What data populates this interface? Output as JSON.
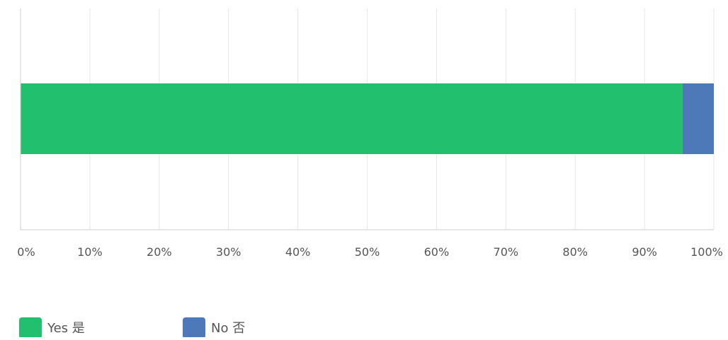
{
  "chart_data": {
    "type": "bar",
    "orientation": "horizontal",
    "stacked": true,
    "percent_stacked": true,
    "categories": [
      ""
    ],
    "series": [
      {
        "name": "Yes 是",
        "values": [
          95.5
        ],
        "color": "#22bf6f"
      },
      {
        "name": "No 否",
        "values": [
          4.5
        ],
        "color": "#4e79b9"
      }
    ],
    "xlim": [
      0,
      100
    ],
    "x_ticks": [
      0,
      10,
      20,
      30,
      40,
      50,
      60,
      70,
      80,
      90,
      100
    ],
    "x_tick_labels": [
      "0%",
      "10%",
      "20%",
      "30%",
      "40%",
      "50%",
      "60%",
      "70%",
      "80%",
      "90%",
      "100%"
    ],
    "grid": true,
    "legend_position": "bottom-left",
    "title": "",
    "xlabel": "",
    "ylabel": ""
  },
  "colors": {
    "grid": "#e6e6e6",
    "axis": "#cfcfcf",
    "tick_text": "#555555",
    "legend_text": "#555555"
  }
}
